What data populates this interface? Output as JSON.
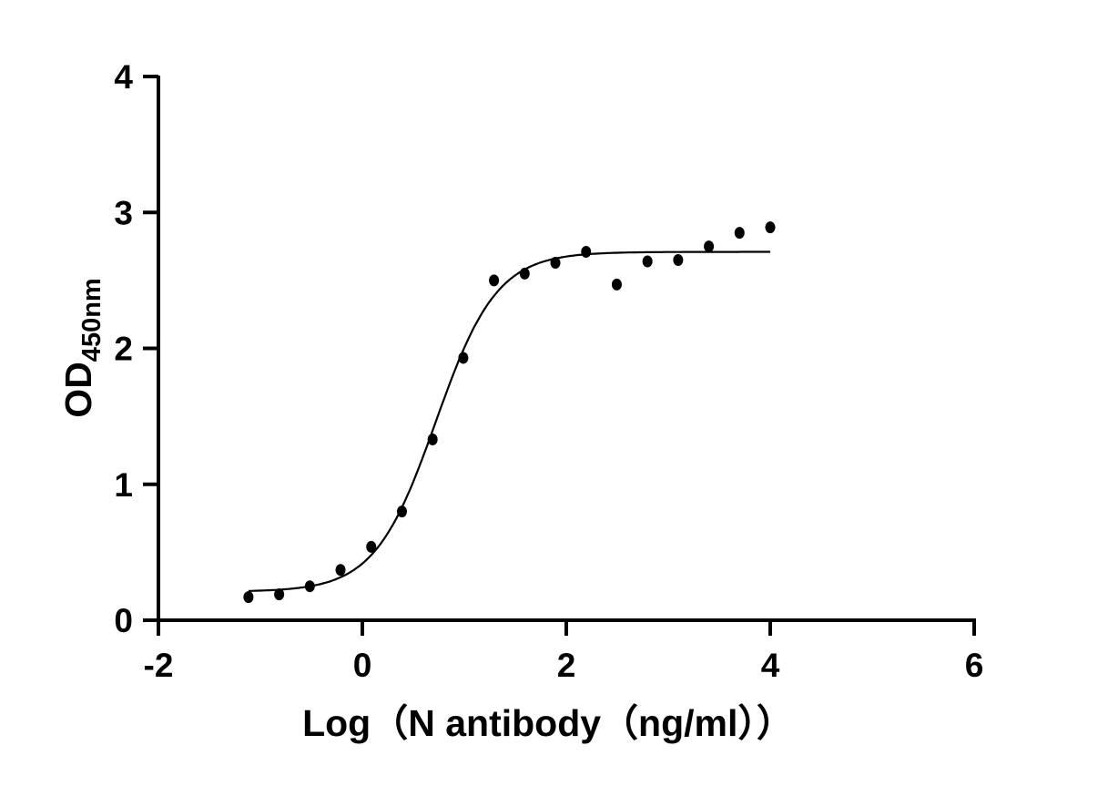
{
  "chart_data": {
    "type": "scatter",
    "title": "",
    "xlabel": "Log（N antibody（ng/ml））",
    "ylabel_main": "OD",
    "ylabel_sub": "450nm",
    "xlim": [
      -2,
      6
    ],
    "ylim": [
      0,
      4
    ],
    "xticks": [
      "-2",
      "0",
      "2",
      "4",
      "6"
    ],
    "yticks": [
      "0",
      "1",
      "2",
      "3",
      "4"
    ],
    "grid": false,
    "legend": "none",
    "marker_color": "#000000",
    "series": [
      {
        "x": [
          -1.117,
          -0.816,
          -0.515,
          -0.214,
          0.087,
          0.388,
          0.689,
          0.99,
          1.291,
          1.592,
          1.893,
          2.194,
          2.495,
          2.796,
          3.097,
          3.398,
          3.699,
          4.0
        ],
        "y": [
          0.17,
          0.19,
          0.25,
          0.37,
          0.54,
          0.8,
          1.33,
          1.93,
          2.5,
          2.55,
          2.63,
          2.71,
          2.47,
          2.64,
          2.65,
          2.75,
          2.85,
          2.89
        ]
      }
    ],
    "fit": {
      "model": "4PL sigmoidal",
      "bottom": 0.21,
      "top": 2.71,
      "logEC50": 0.72,
      "hill": 1.45,
      "x_range": [
        -1.117,
        4.0
      ]
    }
  }
}
